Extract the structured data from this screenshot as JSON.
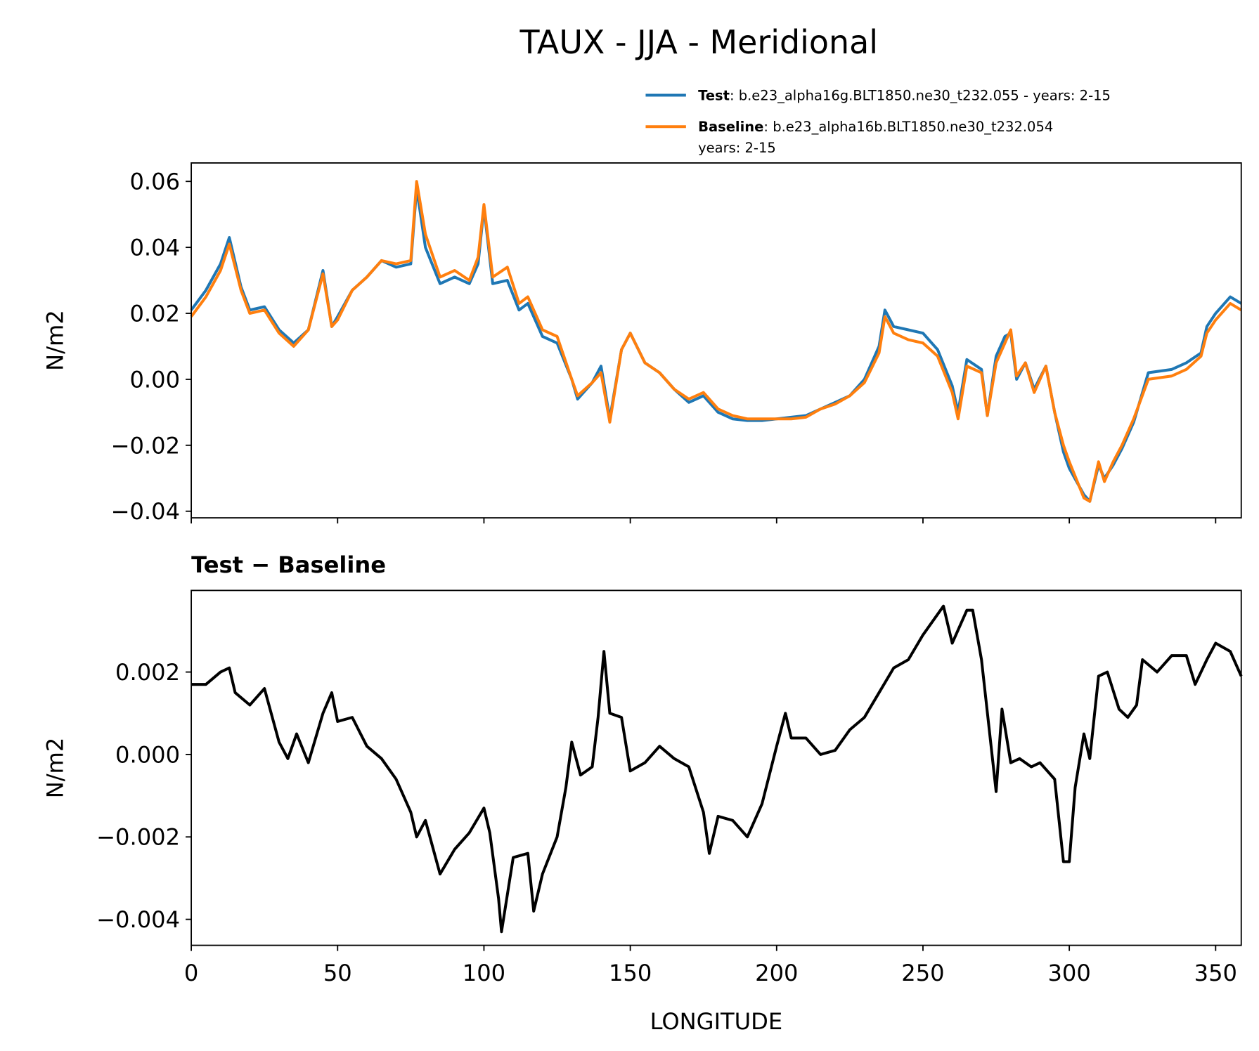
{
  "chart_data": [
    {
      "type": "line",
      "title": "TAUX - JJA - Meridional",
      "ylabel": "N/m2",
      "legend": "upper right",
      "x": [
        0,
        5,
        10,
        13,
        17,
        20,
        25,
        30,
        35,
        40,
        45,
        48,
        50,
        55,
        60,
        65,
        70,
        75,
        77,
        80,
        85,
        90,
        95,
        98,
        100,
        103,
        108,
        112,
        115,
        120,
        125,
        130,
        132,
        137,
        140,
        143,
        147,
        150,
        155,
        160,
        165,
        170,
        175,
        180,
        185,
        190,
        195,
        200,
        205,
        210,
        215,
        220,
        225,
        230,
        235,
        237,
        240,
        245,
        250,
        255,
        260,
        262,
        265,
        270,
        272,
        275,
        278,
        280,
        282,
        285,
        288,
        292,
        295,
        298,
        300,
        305,
        307,
        310,
        312,
        315,
        318,
        322,
        327,
        335,
        340,
        345,
        347,
        350,
        355,
        358.75
      ],
      "series": [
        {
          "name": "Test",
          "label": [
            ": b.e23_alpha16g.BLT1850.ne30_t232.055 - years: 2-15"
          ],
          "color": "#1f77b4",
          "values": [
            0.021,
            0.027,
            0.035,
            0.043,
            0.028,
            0.021,
            0.022,
            0.015,
            0.011,
            0.015,
            0.033,
            0.016,
            0.019,
            0.027,
            0.031,
            0.036,
            0.034,
            0.035,
            0.058,
            0.04,
            0.029,
            0.031,
            0.029,
            0.035,
            0.052,
            0.029,
            0.03,
            0.021,
            0.023,
            0.013,
            0.011,
            0.0,
            -0.006,
            -0.001,
            0.004,
            -0.012,
            0.009,
            0.014,
            0.005,
            0.002,
            -0.003,
            -0.007,
            -0.005,
            -0.01,
            -0.012,
            -0.0125,
            -0.0125,
            -0.012,
            -0.0115,
            -0.011,
            -0.009,
            -0.007,
            -0.005,
            0.0,
            0.01,
            0.021,
            0.016,
            0.015,
            0.014,
            0.009,
            -0.002,
            -0.01,
            0.006,
            0.003,
            -0.011,
            0.007,
            0.013,
            0.014,
            0.0,
            0.005,
            -0.003,
            0.004,
            -0.01,
            -0.022,
            -0.027,
            -0.035,
            -0.037,
            -0.026,
            -0.03,
            -0.026,
            -0.021,
            -0.013,
            0.002,
            0.003,
            0.005,
            0.008,
            0.016,
            0.02,
            0.025,
            0.023
          ]
        },
        {
          "name": "Baseline",
          "label": [
            ": b.e23_alpha16b.BLT1850.ne30_t232.054",
            "years: 2-15"
          ],
          "color": "#ff7f0e",
          "values": [
            0.019,
            0.025,
            0.033,
            0.041,
            0.027,
            0.02,
            0.021,
            0.014,
            0.01,
            0.015,
            0.032,
            0.016,
            0.018,
            0.027,
            0.031,
            0.036,
            0.035,
            0.036,
            0.06,
            0.044,
            0.031,
            0.033,
            0.03,
            0.037,
            0.053,
            0.031,
            0.034,
            0.023,
            0.025,
            0.015,
            0.013,
            0.0,
            -0.005,
            -0.001,
            0.002,
            -0.013,
            0.009,
            0.014,
            0.005,
            0.002,
            -0.003,
            -0.006,
            -0.004,
            -0.009,
            -0.011,
            -0.012,
            -0.012,
            -0.012,
            -0.012,
            -0.0115,
            -0.009,
            -0.0075,
            -0.005,
            -0.001,
            0.008,
            0.019,
            0.014,
            0.012,
            0.011,
            0.007,
            -0.004,
            -0.012,
            0.004,
            0.002,
            -0.011,
            0.005,
            0.011,
            0.015,
            0.001,
            0.005,
            -0.004,
            0.004,
            -0.01,
            -0.02,
            -0.025,
            -0.036,
            -0.037,
            -0.025,
            -0.031,
            -0.025,
            -0.02,
            -0.012,
            0.0,
            0.001,
            0.003,
            0.007,
            0.014,
            0.018,
            0.023,
            0.021
          ]
        }
      ],
      "xlim": [
        0,
        358.75
      ],
      "ylim": [
        -0.042,
        0.0656
      ],
      "xticks": [
        0,
        50,
        100,
        150,
        200,
        250,
        300,
        350
      ],
      "yticks": [
        {
          "value": -0.04,
          "label": "−0.04"
        },
        {
          "value": -0.02,
          "label": "−0.02"
        },
        {
          "value": 0,
          "label": "0.00"
        },
        0.02,
        0.04,
        0.06
      ]
    },
    {
      "type": "line",
      "title": "Test − Baseline",
      "ylabel": "N/m2",
      "xlabel": "LONGITUDE",
      "x": [
        0,
        5,
        10,
        13,
        15,
        20,
        25,
        30,
        33,
        36,
        40,
        45,
        48,
        50,
        55,
        60,
        65,
        70,
        75,
        77,
        80,
        85,
        90,
        95,
        100,
        102,
        105,
        106,
        110,
        115,
        117,
        120,
        125,
        128,
        130,
        133,
        137,
        139,
        141,
        143,
        147,
        150,
        155,
        160,
        165,
        170,
        175,
        177,
        180,
        185,
        190,
        195,
        200,
        203,
        205,
        210,
        215,
        220,
        225,
        230,
        235,
        240,
        245,
        250,
        255,
        257,
        260,
        265,
        267,
        270,
        275,
        277,
        280,
        283,
        287,
        290,
        295,
        298,
        300,
        302,
        305,
        307,
        310,
        313,
        317,
        320,
        323,
        325,
        330,
        335,
        340,
        343,
        347,
        350,
        355,
        358.75
      ],
      "series": [
        {
          "color": "#000000",
          "values": [
            0.0017,
            0.0017,
            0.002,
            0.0021,
            0.0015,
            0.0012,
            0.0016,
            0.0003,
            -0.0001,
            0.0005,
            -0.0002,
            0.001,
            0.0015,
            0.0008,
            0.0009,
            0.0002,
            -0.0001,
            -0.0006,
            -0.0014,
            -0.002,
            -0.0016,
            -0.0029,
            -0.0023,
            -0.0019,
            -0.0013,
            -0.0019,
            -0.0035,
            -0.0043,
            -0.0025,
            -0.0024,
            -0.0038,
            -0.0029,
            -0.002,
            -0.0008,
            0.0003,
            -0.0005,
            -0.0003,
            0.0009,
            0.0025,
            0.001,
            0.0009,
            -0.0004,
            -0.0002,
            0.0002,
            -0.0001,
            -0.0003,
            -0.0014,
            -0.0024,
            -0.0015,
            -0.0016,
            -0.002,
            -0.0012,
            0.0002,
            0.001,
            0.0004,
            0.0004,
            0,
            0.0001,
            0.0006,
            0.0009,
            0.0015,
            0.0021,
            0.0023,
            0.0029,
            0.0034,
            0.0036,
            0.0027,
            0.0035,
            0.0035,
            0.0023,
            -0.0009,
            0.0011,
            -0.0002,
            -0.0001,
            -0.0003,
            -0.0002,
            -0.0006,
            -0.0026,
            -0.0026,
            -0.0008,
            0.0005,
            -0.0001,
            0.0019,
            0.002,
            0.0011,
            0.0009,
            0.0012,
            0.0023,
            0.002,
            0.0024,
            0.0024,
            0.0017,
            0.0023,
            0.0027,
            0.0025,
            0.0019
          ]
        }
      ],
      "xlim": [
        0,
        358.75
      ],
      "ylim": [
        -0.00463,
        0.00398
      ],
      "xticks": [
        0,
        50,
        100,
        150,
        200,
        250,
        300,
        350
      ],
      "yticks": [
        {
          "value": -0.004,
          "label": "−0.004"
        },
        {
          "value": -0.002,
          "label": "−0.002"
        },
        {
          "value": 0,
          "label": "0.000"
        },
        0.002
      ]
    }
  ]
}
